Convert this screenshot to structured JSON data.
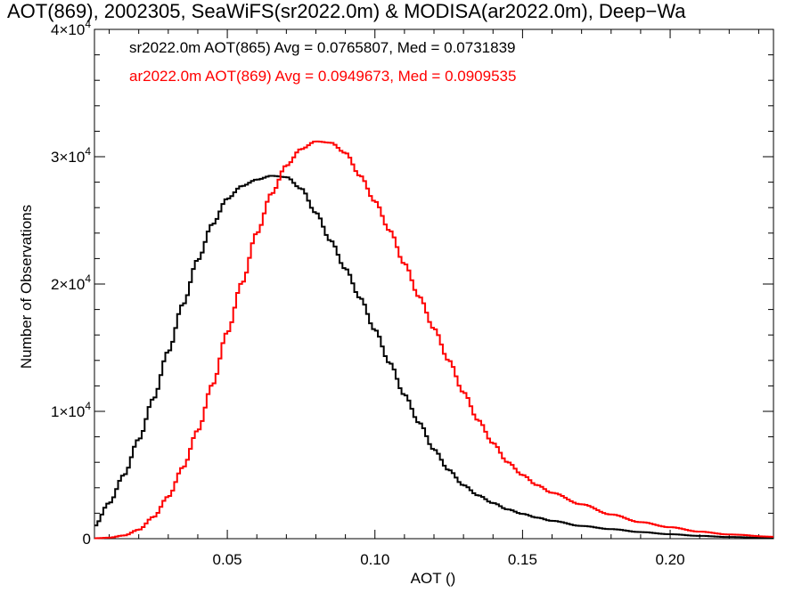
{
  "chart_data": {
    "type": "line",
    "step": true,
    "title": "AOT(869), 2002305, SeaWiFS(sr2022.0m) & MODISA(ar2022.0m), Deep−Wa",
    "xlabel": "AOT ()",
    "ylabel": "Number of Observations",
    "xlim": [
      0.005,
      0.235
    ],
    "ylim": [
      0,
      40000
    ],
    "xticks": [
      0.05,
      0.1,
      0.15,
      0.2
    ],
    "xtick_labels": [
      "0.05",
      "0.10",
      "0.15",
      "0.20"
    ],
    "yticks": [
      0,
      10000,
      20000,
      30000,
      40000
    ],
    "ytick_labels": [
      {
        "mant": "0",
        "exp": ""
      },
      {
        "mant": "1×10",
        "exp": "4"
      },
      {
        "mant": "2×10",
        "exp": "4"
      },
      {
        "mant": "3×10",
        "exp": "4"
      },
      {
        "mant": "4×10",
        "exp": "4"
      }
    ],
    "legend_placement": "top-left",
    "series": [
      {
        "name": "sr2022.0m AOT(865) Avg = 0.0765807, Med = 0.0731839",
        "color": "#000000",
        "x": [
          0.005,
          0.01,
          0.015,
          0.02,
          0.025,
          0.03,
          0.035,
          0.04,
          0.045,
          0.05,
          0.055,
          0.06,
          0.065,
          0.07,
          0.075,
          0.08,
          0.085,
          0.09,
          0.095,
          0.1,
          0.105,
          0.11,
          0.115,
          0.12,
          0.125,
          0.13,
          0.135,
          0.14,
          0.145,
          0.15,
          0.155,
          0.16,
          0.17,
          0.18,
          0.19,
          0.2,
          0.21,
          0.22,
          0.235
        ],
        "y": [
          1000,
          2800,
          5000,
          7800,
          11000,
          14700,
          18400,
          21900,
          24700,
          26700,
          27700,
          28200,
          28500,
          28400,
          27500,
          25600,
          23400,
          21200,
          18900,
          16400,
          13800,
          11300,
          9100,
          7000,
          5400,
          4200,
          3400,
          2800,
          2300,
          1950,
          1650,
          1400,
          1000,
          750,
          520,
          350,
          220,
          130,
          50
        ]
      },
      {
        "name": "ar2022.0m AOT(869) Avg = 0.0949673, Med = 0.0909535",
        "color": "#ff0000",
        "x": [
          0.005,
          0.01,
          0.015,
          0.02,
          0.025,
          0.03,
          0.035,
          0.04,
          0.045,
          0.05,
          0.055,
          0.06,
          0.065,
          0.07,
          0.075,
          0.08,
          0.085,
          0.09,
          0.095,
          0.1,
          0.105,
          0.11,
          0.115,
          0.12,
          0.125,
          0.13,
          0.135,
          0.14,
          0.145,
          0.15,
          0.155,
          0.16,
          0.17,
          0.18,
          0.19,
          0.2,
          0.21,
          0.22,
          0.235
        ],
        "y": [
          30,
          80,
          250,
          700,
          1700,
          3300,
          5600,
          8500,
          12100,
          16200,
          20100,
          24000,
          27100,
          29300,
          30600,
          31200,
          31100,
          30300,
          28500,
          26500,
          24200,
          21600,
          19000,
          16500,
          14000,
          11500,
          9300,
          7500,
          6000,
          5000,
          4200,
          3600,
          2700,
          1900,
          1300,
          900,
          550,
          330,
          150
        ]
      }
    ]
  }
}
